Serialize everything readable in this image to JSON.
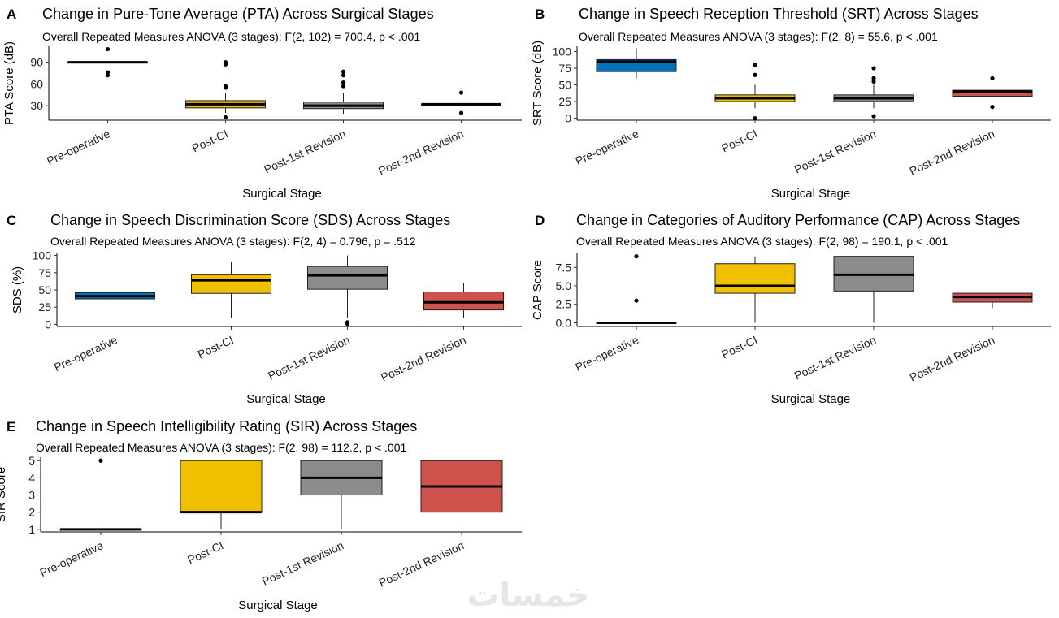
{
  "watermark": "خمسات",
  "xlabel": "Surgical Stage",
  "categories": [
    "Pre-operative",
    "Post-CI",
    "Post-1st Revision",
    "Post-2nd Revision"
  ],
  "colors": {
    "Pre-operative": "#0072bd",
    "Post-CI": "#f0c000",
    "Post-1st Revision": "#8c8c8c",
    "Post-2nd Revision": "#cd534c"
  },
  "chart_data": [
    {
      "panel": "A",
      "type": "box",
      "title": "Change in Pure-Tone Average (PTA) Across Surgical Stages",
      "subtitle": "Overall Repeated Measures ANOVA (3 stages): F(2, 102) = 700.4, p < .001",
      "ylabel": "PTA Score (dB)",
      "ylim": [
        10,
        112
      ],
      "yticks": [
        "30",
        "60",
        "90"
      ],
      "ytick_values": [
        30,
        60,
        90
      ],
      "boxes": [
        {
          "category": "Pre-operative",
          "q1": 90,
          "median": 90,
          "q3": 90,
          "lower": 90,
          "upper": 90,
          "outliers": [
            108,
            76,
            72
          ]
        },
        {
          "category": "Post-CI",
          "q1": 27,
          "median": 32,
          "q3": 37,
          "lower": 20,
          "upper": 47,
          "outliers": [
            90,
            87,
            57,
            55,
            14
          ]
        },
        {
          "category": "Post-1st Revision",
          "q1": 26,
          "median": 30,
          "q3": 35,
          "lower": 19,
          "upper": 47,
          "outliers": [
            77,
            72,
            62,
            57
          ]
        },
        {
          "category": "Post-2nd Revision",
          "q1": 32,
          "median": 32,
          "q3": 32,
          "lower": 32,
          "upper": 32,
          "outliers": [
            48,
            20
          ]
        }
      ]
    },
    {
      "panel": "B",
      "type": "box",
      "title": "Change in Speech Reception Threshold (SRT) Across Stages",
      "subtitle": "Overall Repeated Measures ANOVA (3 stages): F(2, 8) = 55.6, p < .001",
      "ylabel": "SRT Score (dB)",
      "ylim": [
        -3,
        108
      ],
      "yticks": [
        "0",
        "25",
        "50",
        "75",
        "100"
      ],
      "ytick_values": [
        0,
        25,
        50,
        75,
        100
      ],
      "boxes": [
        {
          "category": "Pre-operative",
          "q1": 70,
          "median": 85,
          "q3": 88,
          "lower": 60,
          "upper": 105,
          "outliers": []
        },
        {
          "category": "Post-CI",
          "q1": 25,
          "median": 30,
          "q3": 35,
          "lower": 15,
          "upper": 50,
          "outliers": [
            80,
            65,
            0
          ]
        },
        {
          "category": "Post-1st Revision",
          "q1": 25,
          "median": 30,
          "q3": 35,
          "lower": 15,
          "upper": 50,
          "outliers": [
            75,
            60,
            55,
            3
          ]
        },
        {
          "category": "Post-2nd Revision",
          "q1": 33,
          "median": 40,
          "q3": 42,
          "lower": 33,
          "upper": 42,
          "outliers": [
            60,
            17
          ]
        }
      ]
    },
    {
      "panel": "C",
      "type": "box",
      "title": "Change in Speech Discrimination Score (SDS) Across Stages",
      "subtitle": "Overall Repeated Measures ANOVA (3 stages): F(2, 4) = 0.796, p = .512",
      "ylabel": "SDS (%)",
      "ylim": [
        -3,
        103
      ],
      "yticks": [
        "0",
        "25",
        "50",
        "75",
        "100"
      ],
      "ytick_values": [
        0,
        25,
        50,
        75,
        100
      ],
      "boxes": [
        {
          "category": "Pre-operative",
          "q1": 37,
          "median": 41,
          "q3": 46,
          "lower": 33,
          "upper": 52,
          "outliers": []
        },
        {
          "category": "Post-CI",
          "q1": 45,
          "median": 64,
          "q3": 72,
          "lower": 10,
          "upper": 90,
          "outliers": []
        },
        {
          "category": "Post-1st Revision",
          "q1": 51,
          "median": 71,
          "q3": 84,
          "lower": 10,
          "upper": 100,
          "outliers": [
            3,
            1
          ]
        },
        {
          "category": "Post-2nd Revision",
          "q1": 21,
          "median": 32,
          "q3": 47,
          "lower": 10,
          "upper": 60,
          "outliers": []
        }
      ]
    },
    {
      "panel": "D",
      "type": "box",
      "title": "Change in Categories of Auditory Performance (CAP) Across Stages",
      "subtitle": "Overall Repeated Measures ANOVA (3 stages): F(2, 98) = 190.1, p < .001",
      "ylabel": "CAP Score",
      "ylim": [
        -0.5,
        9.4
      ],
      "yticks": [
        "0.0",
        "2.5",
        "5.0",
        "7.5"
      ],
      "ytick_values": [
        0,
        2.5,
        5,
        7.5
      ],
      "boxes": [
        {
          "category": "Pre-operative",
          "q1": 0,
          "median": 0,
          "q3": 0,
          "lower": 0,
          "upper": 0,
          "outliers": [
            9,
            3
          ]
        },
        {
          "category": "Post-CI",
          "q1": 4,
          "median": 5,
          "q3": 8,
          "lower": 0,
          "upper": 9,
          "outliers": []
        },
        {
          "category": "Post-1st Revision",
          "q1": 4.3,
          "median": 6.5,
          "q3": 9,
          "lower": 0,
          "upper": 9,
          "outliers": []
        },
        {
          "category": "Post-2nd Revision",
          "q1": 2.8,
          "median": 3.5,
          "q3": 4,
          "lower": 2,
          "upper": 4,
          "outliers": []
        }
      ]
    },
    {
      "panel": "E",
      "type": "box",
      "title": "Change in Speech Intelligibility Rating (SIR) Across Stages",
      "subtitle": "Overall Repeated Measures ANOVA (3 stages): F(2, 98) = 112.2, p < .001",
      "ylabel": "SIR Score",
      "ylim": [
        0.85,
        5.2
      ],
      "yticks": [
        "1",
        "2",
        "3",
        "4",
        "5"
      ],
      "ytick_values": [
        1,
        2,
        3,
        4,
        5
      ],
      "boxes": [
        {
          "category": "Pre-operative",
          "q1": 1,
          "median": 1,
          "q3": 1,
          "lower": 1,
          "upper": 1,
          "outliers": [
            5
          ]
        },
        {
          "category": "Post-CI",
          "q1": 2,
          "median": 2,
          "q3": 5,
          "lower": 1,
          "upper": 5,
          "outliers": []
        },
        {
          "category": "Post-1st Revision",
          "q1": 3,
          "median": 4,
          "q3": 5,
          "lower": 1,
          "upper": 5,
          "outliers": []
        },
        {
          "category": "Post-2nd Revision",
          "q1": 2,
          "median": 3.5,
          "q3": 5,
          "lower": 2,
          "upper": 5,
          "outliers": []
        }
      ]
    }
  ]
}
